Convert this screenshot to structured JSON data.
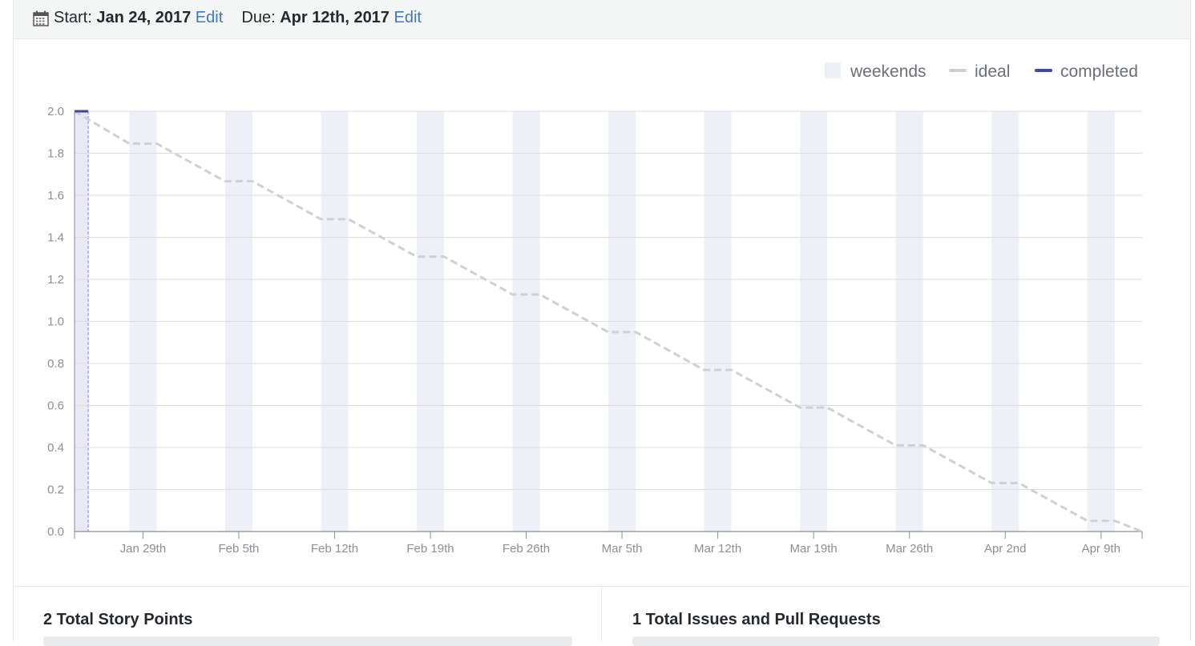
{
  "header": {
    "start_label": "Start:",
    "start_value": "Jan 24, 2017",
    "start_edit": "Edit",
    "due_label": "Due:",
    "due_value": "Apr 12th, 2017",
    "due_edit": "Edit",
    "icon": "calendar-icon"
  },
  "legend": {
    "weekends": "weekends",
    "ideal": "ideal",
    "completed": "completed"
  },
  "colors": {
    "weekend_fill": "#eef0f8",
    "ideal_line": "#cfd0d3",
    "completed_line": "#3b4a9a",
    "current_band": "#e9e8f5",
    "current_marker": "#8b7fe0",
    "grid": "#dcdcdc",
    "axis": "#8a8a96",
    "link": "#4078c0"
  },
  "chart_data": {
    "type": "line",
    "x_start": "2017-01-24",
    "x_end": "2017-04-12",
    "ylim": [
      0,
      2.0
    ],
    "y_ticks": [
      "0.0",
      "0.2",
      "0.4",
      "0.6",
      "0.8",
      "1.0",
      "1.2",
      "1.4",
      "1.6",
      "1.8",
      "2.0"
    ],
    "x_ticks": [
      {
        "date": "2017-01-29",
        "label": "Jan 29th"
      },
      {
        "date": "2017-02-05",
        "label": "Feb 5th"
      },
      {
        "date": "2017-02-12",
        "label": "Feb 12th"
      },
      {
        "date": "2017-02-19",
        "label": "Feb 19th"
      },
      {
        "date": "2017-02-26",
        "label": "Feb 26th"
      },
      {
        "date": "2017-03-05",
        "label": "Mar 5th"
      },
      {
        "date": "2017-03-12",
        "label": "Mar 12th"
      },
      {
        "date": "2017-03-19",
        "label": "Mar 19th"
      },
      {
        "date": "2017-03-26",
        "label": "Mar 26th"
      },
      {
        "date": "2017-04-02",
        "label": "Apr 2nd"
      },
      {
        "date": "2017-04-09",
        "label": "Apr 9th"
      }
    ],
    "weekends": [
      [
        "2017-01-28",
        "2017-01-30"
      ],
      [
        "2017-02-04",
        "2017-02-06"
      ],
      [
        "2017-02-11",
        "2017-02-13"
      ],
      [
        "2017-02-18",
        "2017-02-20"
      ],
      [
        "2017-02-25",
        "2017-02-27"
      ],
      [
        "2017-03-04",
        "2017-03-06"
      ],
      [
        "2017-03-11",
        "2017-03-13"
      ],
      [
        "2017-03-18",
        "2017-03-20"
      ],
      [
        "2017-03-25",
        "2017-03-27"
      ],
      [
        "2017-04-01",
        "2017-04-03"
      ],
      [
        "2017-04-08",
        "2017-04-10"
      ]
    ],
    "current_period": [
      "2017-01-24",
      "2017-01-25"
    ],
    "series": [
      {
        "name": "ideal",
        "style": "dashed",
        "points": [
          [
            "2017-01-24",
            2.0
          ],
          [
            "2017-01-28",
            1.846
          ],
          [
            "2017-01-30",
            1.846
          ],
          [
            "2017-02-04",
            1.667
          ],
          [
            "2017-02-06",
            1.667
          ],
          [
            "2017-02-11",
            1.487
          ],
          [
            "2017-02-13",
            1.487
          ],
          [
            "2017-02-18",
            1.308
          ],
          [
            "2017-02-20",
            1.308
          ],
          [
            "2017-02-25",
            1.128
          ],
          [
            "2017-02-27",
            1.128
          ],
          [
            "2017-03-04",
            0.949
          ],
          [
            "2017-03-06",
            0.949
          ],
          [
            "2017-03-11",
            0.769
          ],
          [
            "2017-03-13",
            0.769
          ],
          [
            "2017-03-18",
            0.59
          ],
          [
            "2017-03-20",
            0.59
          ],
          [
            "2017-03-25",
            0.41
          ],
          [
            "2017-03-27",
            0.41
          ],
          [
            "2017-04-01",
            0.231
          ],
          [
            "2017-04-03",
            0.231
          ],
          [
            "2017-04-08",
            0.051
          ],
          [
            "2017-04-10",
            0.051
          ],
          [
            "2017-04-12",
            0.0
          ]
        ]
      },
      {
        "name": "completed",
        "style": "solid",
        "points": [
          [
            "2017-01-24",
            2.0
          ],
          [
            "2017-01-25",
            2.0
          ]
        ]
      }
    ]
  },
  "stats": {
    "story_points": "2 Total Story Points",
    "issues": "1 Total Issues and Pull Requests"
  }
}
